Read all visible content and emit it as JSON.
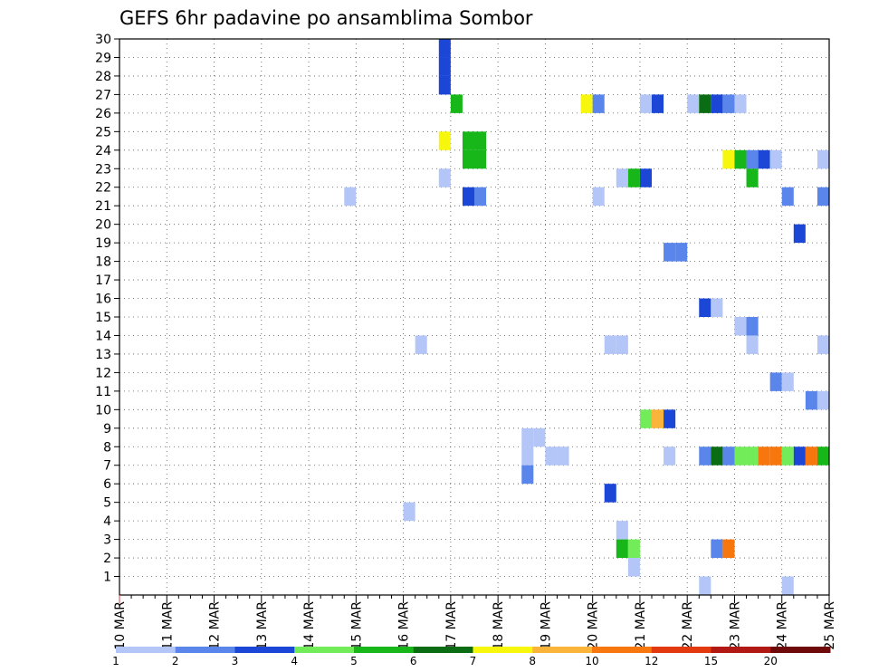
{
  "chart_data": {
    "type": "heatmap",
    "title": "GEFS 6hr padavine po ansamblima Sombor",
    "xlabel": "",
    "ylabel": "",
    "x_axis": {
      "unit": "6-hour step",
      "start_date_label": "10 MAR",
      "tick_labels": [
        "10 MAR",
        "11 MAR",
        "12 MAR",
        "13 MAR",
        "14 MAR",
        "15 MAR",
        "16 MAR",
        "17 MAR",
        "18 MAR",
        "19 MAR",
        "20 MAR",
        "21 MAR",
        "22 MAR",
        "23 MAR",
        "24 MAR",
        "25 MAR"
      ]
    },
    "y_axis": {
      "ticks": [
        1,
        2,
        3,
        4,
        5,
        6,
        7,
        8,
        9,
        10,
        11,
        12,
        13,
        14,
        15,
        16,
        17,
        18,
        19,
        20,
        21,
        22,
        23,
        24,
        25,
        26,
        27,
        28,
        29,
        30
      ],
      "range": [
        0,
        30
      ]
    },
    "grid": "dotted",
    "colorbar": {
      "placement": "bottom",
      "labels": [
        "1",
        "2",
        "3",
        "4",
        "5",
        "6",
        "7",
        "8",
        "10",
        "12",
        "15",
        "20"
      ],
      "colors": [
        "#b3c6f7",
        "#5a85ea",
        "#1c47d6",
        "#72ec58",
        "#17b71a",
        "#0b6d13",
        "#f7f70d",
        "#fbb43a",
        "#f7770e",
        "#e3390e",
        "#b31914",
        "#6e0a0a"
      ]
    },
    "cells": [
      {
        "date": "16 MAR 18Z",
        "member": 29,
        "color": "#1c47d6"
      },
      {
        "date": "16 MAR 18Z",
        "member": 28,
        "color": "#1c47d6"
      },
      {
        "date": "16 MAR 18Z",
        "member": 27,
        "color": "#1c47d6"
      },
      {
        "date": "17 MAR 00Z",
        "member": 26,
        "color": "#17b71a"
      },
      {
        "date": "16 MAR 18Z",
        "member": 24,
        "color": "#f7f70d"
      },
      {
        "date": "17 MAR 06Z",
        "member": 24,
        "color": "#17b71a"
      },
      {
        "date": "17 MAR 12Z",
        "member": 24,
        "color": "#17b71a"
      },
      {
        "date": "17 MAR 06Z",
        "member": 23,
        "color": "#17b71a"
      },
      {
        "date": "17 MAR 12Z",
        "member": 23,
        "color": "#17b71a"
      },
      {
        "date": "16 MAR 18Z",
        "member": 22,
        "color": "#b3c6f7"
      },
      {
        "date": "17 MAR 06Z",
        "member": 21,
        "color": "#1c47d6"
      },
      {
        "date": "17 MAR 12Z",
        "member": 21,
        "color": "#5a85ea"
      },
      {
        "date": "14 MAR 18Z",
        "member": 21,
        "color": "#b3c6f7"
      },
      {
        "date": "16 MAR 06Z",
        "member": 13,
        "color": "#b3c6f7"
      },
      {
        "date": "16 MAR 00Z",
        "member": 4,
        "color": "#b3c6f7"
      },
      {
        "date": "18 MAR 12Z",
        "member": 8,
        "color": "#b3c6f7"
      },
      {
        "date": "18 MAR 18Z",
        "member": 8,
        "color": "#b3c6f7"
      },
      {
        "date": "18 MAR 12Z",
        "member": 7,
        "color": "#b3c6f7"
      },
      {
        "date": "19 MAR 00Z",
        "member": 7,
        "color": "#b3c6f7"
      },
      {
        "date": "19 MAR 06Z",
        "member": 7,
        "color": "#b3c6f7"
      },
      {
        "date": "18 MAR 12Z",
        "member": 6,
        "color": "#5a85ea"
      },
      {
        "date": "19 MAR 18Z",
        "member": 26,
        "color": "#f7f70d"
      },
      {
        "date": "20 MAR 00Z",
        "member": 26,
        "color": "#5a85ea"
      },
      {
        "date": "20 MAR 00Z",
        "member": 21,
        "color": "#b3c6f7"
      },
      {
        "date": "20 MAR 06Z",
        "member": 13,
        "color": "#b3c6f7"
      },
      {
        "date": "20 MAR 12Z",
        "member": 13,
        "color": "#b3c6f7"
      },
      {
        "date": "20 MAR 06Z",
        "member": 5,
        "color": "#1c47d6"
      },
      {
        "date": "20 MAR 12Z",
        "member": 22,
        "color": "#b3c6f7"
      },
      {
        "date": "20 MAR 18Z",
        "member": 22,
        "color": "#17b71a"
      },
      {
        "date": "21 MAR 00Z",
        "member": 22,
        "color": "#1c47d6"
      },
      {
        "date": "21 MAR 00Z",
        "member": 26,
        "color": "#b3c6f7"
      },
      {
        "date": "21 MAR 06Z",
        "member": 26,
        "color": "#1c47d6"
      },
      {
        "date": "21 MAR 00Z",
        "member": 9,
        "color": "#72ec58"
      },
      {
        "date": "21 MAR 06Z",
        "member": 9,
        "color": "#fbb43a"
      },
      {
        "date": "21 MAR 12Z",
        "member": 9,
        "color": "#1c47d6"
      },
      {
        "date": "20 MAR 12Z",
        "member": 3,
        "color": "#b3c6f7"
      },
      {
        "date": "20 MAR 12Z",
        "member": 2,
        "color": "#17b71a"
      },
      {
        "date": "20 MAR 18Z",
        "member": 2,
        "color": "#72ec58"
      },
      {
        "date": "20 MAR 18Z",
        "member": 1,
        "color": "#b3c6f7"
      },
      {
        "date": "21 MAR 12Z",
        "member": 7,
        "color": "#b3c6f7"
      },
      {
        "date": "21 MAR 12Z",
        "member": 18,
        "color": "#5a85ea"
      },
      {
        "date": "21 MAR 18Z",
        "member": 18,
        "color": "#5a85ea"
      },
      {
        "date": "22 MAR 00Z",
        "member": 26,
        "color": "#b3c6f7"
      },
      {
        "date": "22 MAR 06Z",
        "member": 26,
        "color": "#0b6d13"
      },
      {
        "date": "22 MAR 12Z",
        "member": 26,
        "color": "#1c47d6"
      },
      {
        "date": "22 MAR 18Z",
        "member": 26,
        "color": "#5a85ea"
      },
      {
        "date": "23 MAR 00Z",
        "member": 26,
        "color": "#b3c6f7"
      },
      {
        "date": "22 MAR 06Z",
        "member": 15,
        "color": "#1c47d6"
      },
      {
        "date": "22 MAR 12Z",
        "member": 15,
        "color": "#b3c6f7"
      },
      {
        "date": "22 MAR 06Z",
        "member": 7,
        "color": "#5a85ea"
      },
      {
        "date": "22 MAR 12Z",
        "member": 7,
        "color": "#0b6d13"
      },
      {
        "date": "22 MAR 18Z",
        "member": 7,
        "color": "#5a85ea"
      },
      {
        "date": "23 MAR 00Z",
        "member": 7,
        "color": "#72ec58"
      },
      {
        "date": "23 MAR 06Z",
        "member": 7,
        "color": "#72ec58"
      },
      {
        "date": "23 MAR 12Z",
        "member": 7,
        "color": "#f7770e"
      },
      {
        "date": "23 MAR 18Z",
        "member": 7,
        "color": "#f7770e"
      },
      {
        "date": "24 MAR 00Z",
        "member": 7,
        "color": "#72ec58"
      },
      {
        "date": "24 MAR 06Z",
        "member": 7,
        "color": "#1c47d6"
      },
      {
        "date": "24 MAR 12Z",
        "member": 7,
        "color": "#f7770e"
      },
      {
        "date": "24 MAR 18Z",
        "member": 7,
        "color": "#17b71a"
      },
      {
        "date": "22 MAR 12Z",
        "member": 2,
        "color": "#5a85ea"
      },
      {
        "date": "22 MAR 18Z",
        "member": 2,
        "color": "#f7770e"
      },
      {
        "date": "22 MAR 06Z",
        "member": 0,
        "color": "#b3c6f7"
      },
      {
        "date": "22 MAR 18Z",
        "member": 23,
        "color": "#f7f70d"
      },
      {
        "date": "23 MAR 00Z",
        "member": 23,
        "color": "#17b71a"
      },
      {
        "date": "23 MAR 06Z",
        "member": 23,
        "color": "#5a85ea"
      },
      {
        "date": "23 MAR 12Z",
        "member": 23,
        "color": "#1c47d6"
      },
      {
        "date": "23 MAR 18Z",
        "member": 23,
        "color": "#b3c6f7"
      },
      {
        "date": "23 MAR 06Z",
        "member": 22,
        "color": "#17b71a"
      },
      {
        "date": "23 MAR 00Z",
        "member": 14,
        "color": "#b3c6f7"
      },
      {
        "date": "23 MAR 06Z",
        "member": 14,
        "color": "#5a85ea"
      },
      {
        "date": "23 MAR 06Z",
        "member": 13,
        "color": "#b3c6f7"
      },
      {
        "date": "24 MAR 00Z",
        "member": 21,
        "color": "#5a85ea"
      },
      {
        "date": "24 MAR 06Z",
        "member": 19,
        "color": "#1c47d6"
      },
      {
        "date": "23 MAR 18Z",
        "member": 11,
        "color": "#5a85ea"
      },
      {
        "date": "24 MAR 00Z",
        "member": 11,
        "color": "#b3c6f7"
      },
      {
        "date": "24 MAR 12Z",
        "member": 10,
        "color": "#5a85ea"
      },
      {
        "date": "24 MAR 18Z",
        "member": 10,
        "color": "#b3c6f7"
      },
      {
        "date": "24 MAR 18Z",
        "member": 13,
        "color": "#b3c6f7"
      },
      {
        "date": "24 MAR 18Z",
        "member": 21,
        "color": "#5a85ea"
      },
      {
        "date": "24 MAR 18Z",
        "member": 23,
        "color": "#b3c6f7"
      },
      {
        "date": "24 MAR 00Z",
        "member": 0,
        "color": "#b3c6f7"
      }
    ]
  }
}
